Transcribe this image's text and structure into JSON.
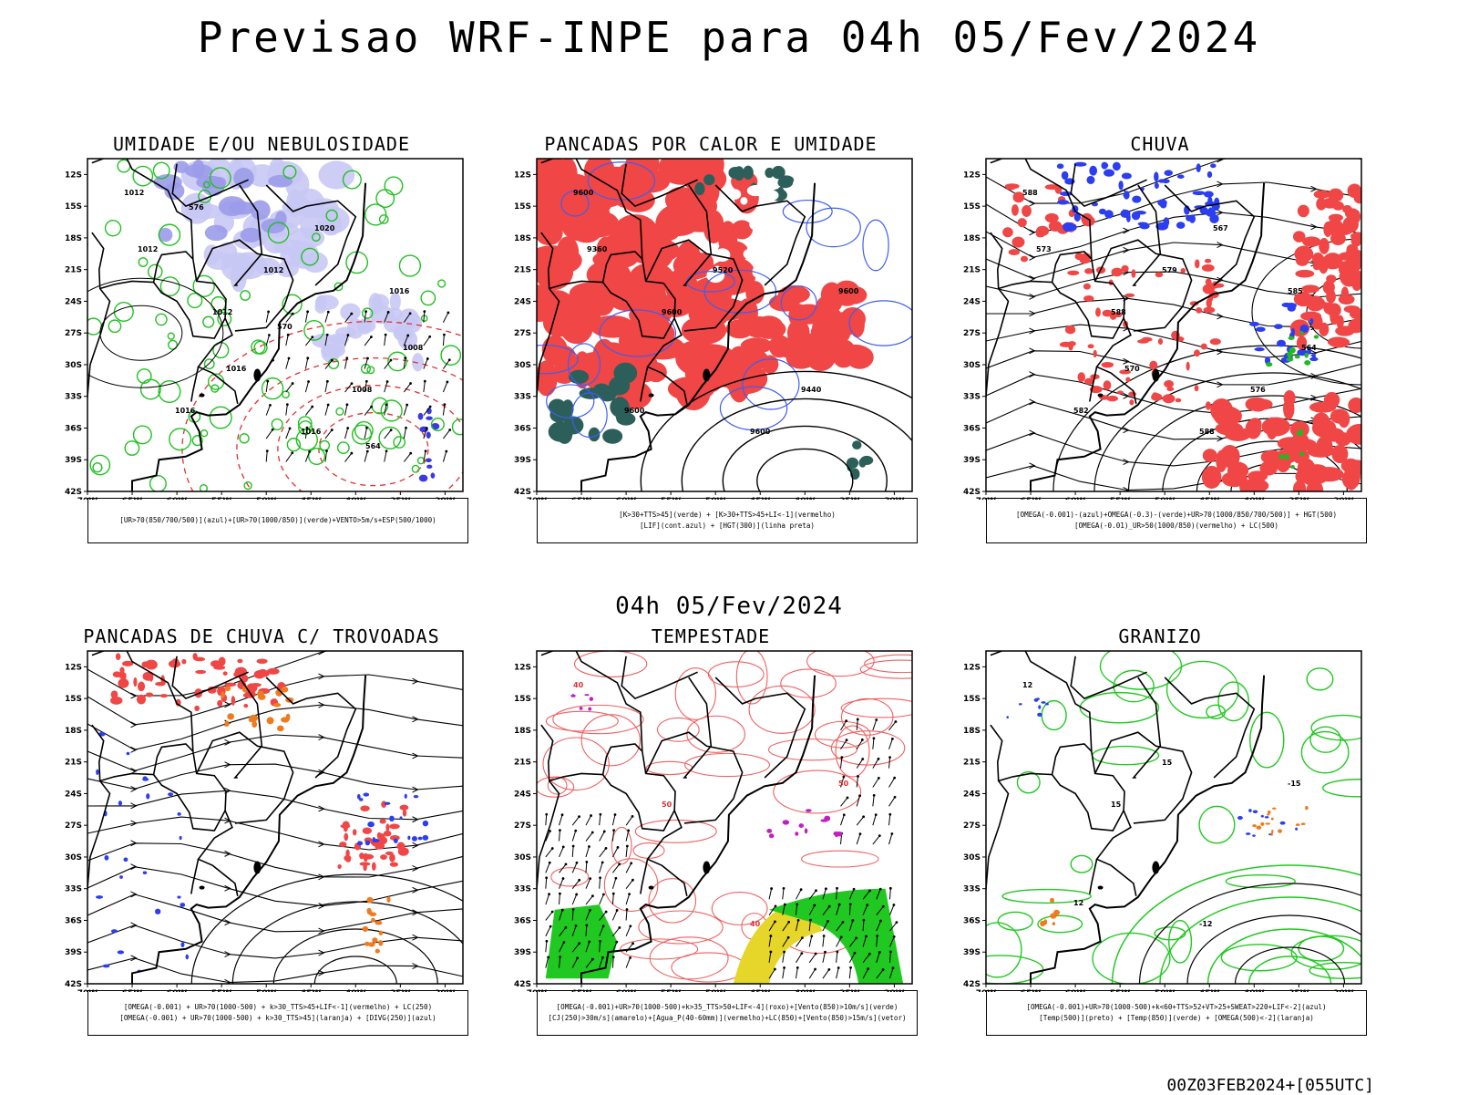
{
  "title": "Previsao WRF-INPE  para 04h 05/Fev/2024",
  "middle_label": "04h 05/Fev/2024",
  "footer": "00Z03FEB2024+[055UTC]",
  "axes": {
    "lat_labels": [
      "12S",
      "15S",
      "18S",
      "21S",
      "24S",
      "27S",
      "30S",
      "33S",
      "36S",
      "39S",
      "42S"
    ],
    "lon_labels": [
      "70W",
      "65W",
      "60W",
      "55W",
      "50W",
      "45W",
      "40W",
      "35W",
      "30W"
    ]
  },
  "panels": [
    {
      "title": "UMIDADE E/OU NEBULOSIDADE",
      "legend": [
        "[UR>70(850/700/500)](azul)+[UR>70(1000/850)](verde)+VENTO>5m/s+ESP(500/1000)"
      ],
      "contour_labels": [
        "1012",
        "1012",
        "1016",
        "1016",
        "1016",
        "1012",
        "1008",
        "1012",
        "1016",
        "1020",
        "1008",
        "576",
        "570",
        "564"
      ]
    },
    {
      "title": "PANCADAS POR CALOR E UMIDADE",
      "legend": [
        "[K>30+TTS>45](verde) + [K>30+TTS>45+LI<-1](vermelho)",
        "[LIF](cont.azul) + [HGT(300)](linha preta)"
      ],
      "contour_labels": [
        "9600",
        "9600",
        "9600",
        "9600",
        "9600",
        "9520",
        "9440",
        "9360"
      ]
    },
    {
      "title": "CHUVA",
      "legend": [
        "[OMEGA(-0.001)-(azul)+OMEGA(-0.3)-(verde)+UR>70(1000/850/700/500)] + HGT(500)",
        "[OMEGA(-0.01)_UR>50(1000/850)(vermelho) + LC(500)"
      ],
      "contour_labels": [
        "588",
        "588",
        "588",
        "585",
        "582",
        "579",
        "576",
        "573",
        "570",
        "567",
        "564"
      ]
    },
    {
      "title": "PANCADAS DE CHUVA C/ TROVOADAS",
      "legend": [
        "[OMEGA(-0.001) + UR>70(1000-500) + k>30_TTS>45+LIF<-1](vermelho) + LC(250)",
        "[OMEGA(-0.001) + UR>70(1000-500) + k>30_TTS>45](laranja) + [DIVG(250)](azul)"
      ],
      "contour_labels": []
    },
    {
      "title": "TEMPESTADE",
      "legend": [
        "[OMEGA(-0.001)+UR>70(1000-500)+k>35_TTS>50+LIF<-4](roxo)+[Vento(850)>10m/s](verde)",
        "[CJ(250)>30m/s](amarelo)+[Agua_P(40-60mm)](vermelho)+LC(850)+[Vento(850)>15m/s](vetor)"
      ],
      "contour_labels": [
        "40",
        "50",
        "40",
        "50"
      ]
    },
    {
      "title": "GRANIZO",
      "legend": [
        "[OMEGA(-0.001)+UR>70(1000-500)+k<60+TTS>52+VT>25+SWEAT>220+LIF<-2](azul)",
        "[Temp(500)](preto) + [Temp(850)](verde) + [OMEGA(500)<-2](laranja)"
      ],
      "contour_labels": [
        "12",
        "15",
        "-12",
        "-15",
        "12",
        "15"
      ]
    }
  ]
}
